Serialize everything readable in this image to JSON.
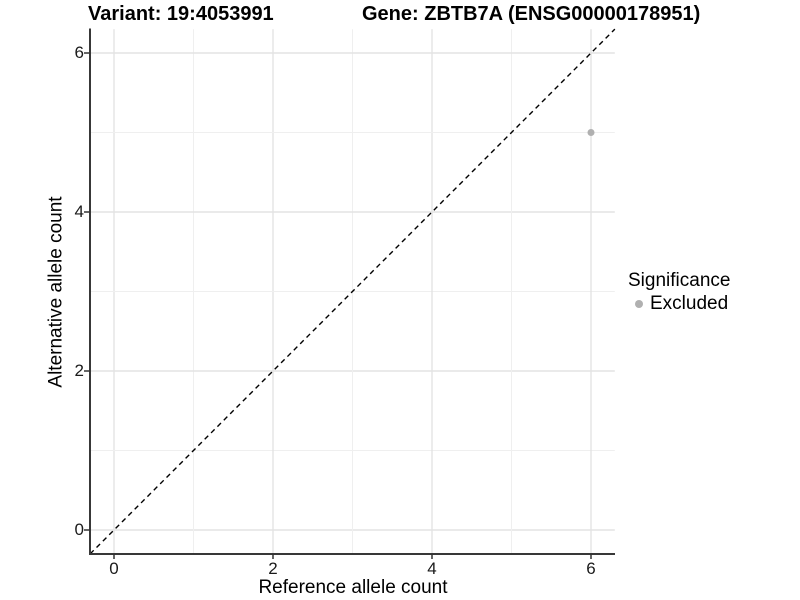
{
  "figure": {
    "title_left": "Variant: 19:4053991",
    "title_right": "Gene: ZBTB7A (ENSG00000178951)"
  },
  "axes": {
    "x": {
      "label": "Reference allele count",
      "tick_labels": [
        "0",
        "2",
        "4",
        "6"
      ]
    },
    "y": {
      "label": "Alternative allele count",
      "tick_labels": [
        "0",
        "2",
        "4",
        "6"
      ]
    }
  },
  "legend": {
    "title": "Significance",
    "items": [
      {
        "label": "Excluded",
        "marker": "dot-icon",
        "color": "#b0b0b0"
      }
    ]
  },
  "colors": {
    "point": "#b0b0b0",
    "grid_major": "#e3e3e3",
    "grid_minor": "#efefef",
    "axis_line": "#383838",
    "reference_line": "#000000",
    "background": "#ffffff"
  },
  "chart_data": {
    "type": "scatter",
    "title": "Variant: 19:4053991 — Gene: ZBTB7A (ENSG00000178951)",
    "xlabel": "Reference allele count",
    "ylabel": "Alternative allele count",
    "xlim": [
      -0.3,
      6.3
    ],
    "ylim": [
      -0.3,
      6.3
    ],
    "x_ticks": [
      0,
      2,
      4,
      6
    ],
    "y_ticks": [
      0,
      2,
      4,
      6
    ],
    "grid": "on",
    "legend_position": "right",
    "series": [
      {
        "name": "Excluded",
        "color": "#b0b0b0",
        "points": [
          {
            "x": 6,
            "y": 5
          }
        ]
      }
    ],
    "reference_line": {
      "type": "identity y=x",
      "style": "dashed",
      "from": [
        -0.3,
        -0.3
      ],
      "to": [
        6.3,
        6.3
      ]
    }
  }
}
